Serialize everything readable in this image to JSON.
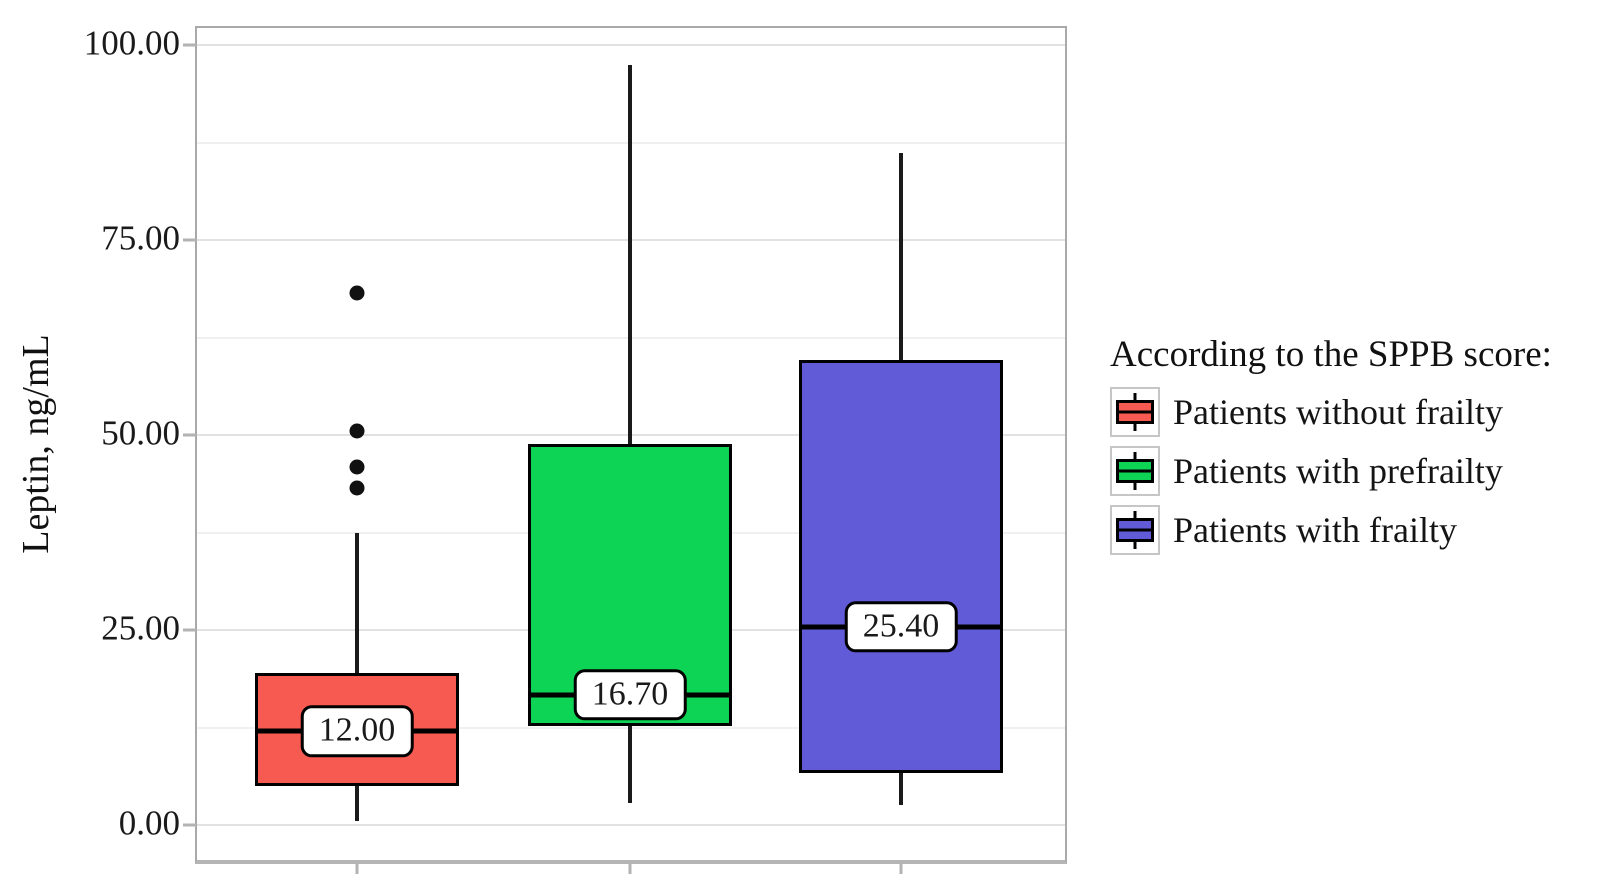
{
  "y_axis": {
    "title": "Leptin, ng/mL",
    "major_ticks": [
      100,
      75,
      50,
      25,
      0
    ],
    "tick_labels": [
      "100.00",
      "75.00",
      "50.00",
      "25.00",
      "0.00"
    ],
    "minor_ticks": [
      87.5,
      62.5,
      37.5,
      12.5
    ]
  },
  "legend": {
    "title": "According to the SPPB score:",
    "items": [
      {
        "label": "Patients without frailty",
        "color": "#F75A50"
      },
      {
        "label": "Patients with prefrailty",
        "color": "#0ED455"
      },
      {
        "label": "Patients with frailty",
        "color": "#615BD8"
      }
    ]
  },
  "colors": {
    "panel_border": "#a9a9a9",
    "axis_line": "#b5b5b5",
    "major_gridline": "#e2e2e2",
    "minor_gridline": "#f0f0f0",
    "box_outline": "#000000"
  },
  "chart_data": {
    "type": "boxplot",
    "title": "",
    "xlabel": "",
    "ylabel": "Leptin, ng/mL",
    "ylim": [
      -4.5,
      102.2
    ],
    "grid": "on",
    "legend_position": "right",
    "groups": [
      {
        "name": "Patients without frailty",
        "color": "#F75A50",
        "whisker_low": 0.5,
        "q1": 5.0,
        "median": 12.0,
        "median_label": "12.00",
        "q3": 19.5,
        "whisker_high": 37.5,
        "outliers": [
          43.2,
          45.9,
          50.5,
          68.2
        ]
      },
      {
        "name": "Patients with prefrailty",
        "color": "#0ED455",
        "whisker_low": 2.8,
        "q1": 12.7,
        "median": 16.7,
        "median_label": "16.70",
        "q3": 48.8,
        "whisker_high": 97.4,
        "outliers": []
      },
      {
        "name": "Patients with frailty",
        "color": "#615BD8",
        "whisker_low": 2.6,
        "q1": 6.7,
        "median": 25.4,
        "median_label": "25.40",
        "q3": 59.6,
        "whisker_high": 86.2,
        "outliers": []
      }
    ]
  }
}
